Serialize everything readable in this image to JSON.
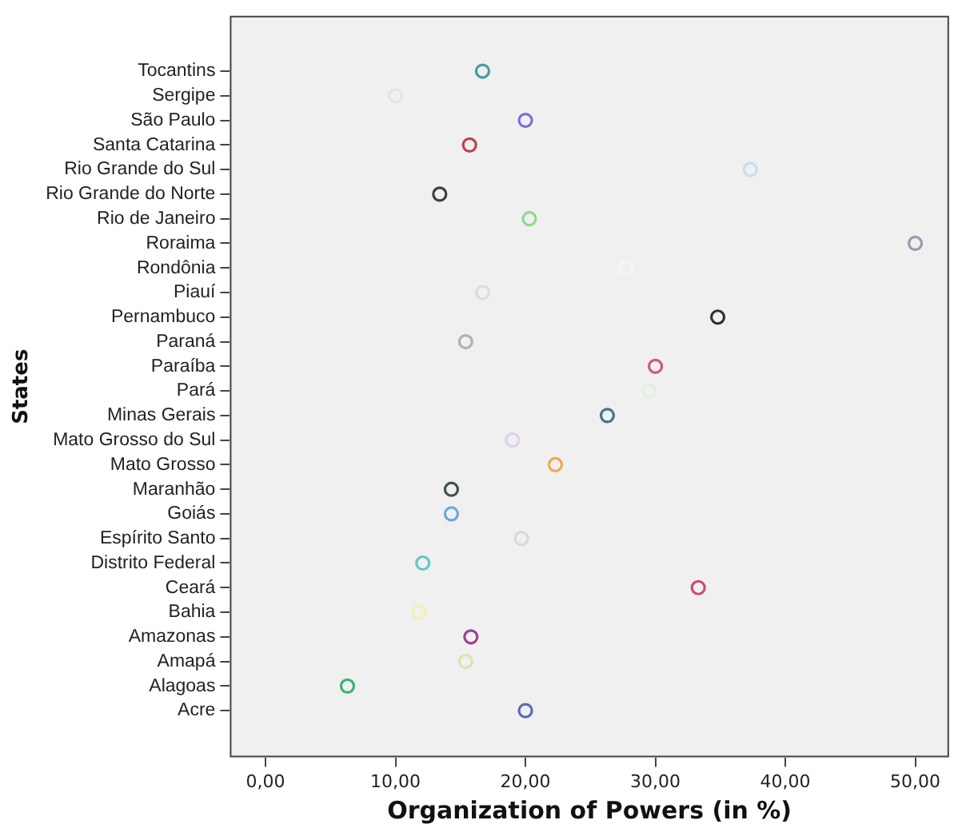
{
  "chart_data": {
    "type": "scatter",
    "xlabel": "Organization of Powers (in %)",
    "ylabel": "States",
    "categories": [
      "Tocantins",
      "Sergipe",
      "São Paulo",
      "Santa Catarina",
      "Rio Grande do Sul",
      "Rio Grande do Norte",
      "Rio de Janeiro",
      "Roraima",
      "Rondônia",
      "Piauí",
      "Pernambuco",
      "Paraná",
      "Paraíba",
      "Pará",
      "Minas Gerais",
      "Mato Grosso do Sul",
      "Mato Grosso",
      "Maranhão",
      "Goiás",
      "Espírito Santo",
      "Distrito Federal",
      "Ceará",
      "Bahia",
      "Amazonas",
      "Amapá",
      "Alagoas",
      "Acre"
    ],
    "orientation": "horizontal",
    "values": [
      16.7,
      10.0,
      20.0,
      15.7,
      37.3,
      13.4,
      20.3,
      50.0,
      27.7,
      16.7,
      34.8,
      15.4,
      30.0,
      29.5,
      26.3,
      19.0,
      22.3,
      14.3,
      14.3,
      19.7,
      12.1,
      33.3,
      11.8,
      15.8,
      15.4,
      6.3,
      20.0
    ],
    "colors": [
      "#4a9a9a",
      "#e4e4e4",
      "#7b6fd8",
      "#c04050",
      "#c8dcf0",
      "#404040",
      "#90d890",
      "#9a98b0",
      "#f6f6f6",
      "#dcdcdc",
      "#303030",
      "#b0b0b0",
      "#d05878",
      "#e0f0e0",
      "#3a7a8a",
      "#e0d0f0",
      "#f0a850",
      "#405050",
      "#70a8d8",
      "#d8d8d8",
      "#60c8c0",
      "#d04870",
      "#f0f0b0",
      "#a04090",
      "#e0e0b0",
      "#40b070",
      "#6068b8"
    ],
    "xlim": [
      -2.75,
      52.6
    ],
    "xticks": [
      {
        "value": 0,
        "label": "0,00"
      },
      {
        "value": 10,
        "label": "10,00"
      },
      {
        "value": 20,
        "label": "20,00"
      },
      {
        "value": 30,
        "label": "30,00"
      },
      {
        "value": 40,
        "label": "40,00"
      },
      {
        "value": 50,
        "label": "50,00"
      }
    ],
    "marker": "circle",
    "grid": false,
    "legend": false
  }
}
